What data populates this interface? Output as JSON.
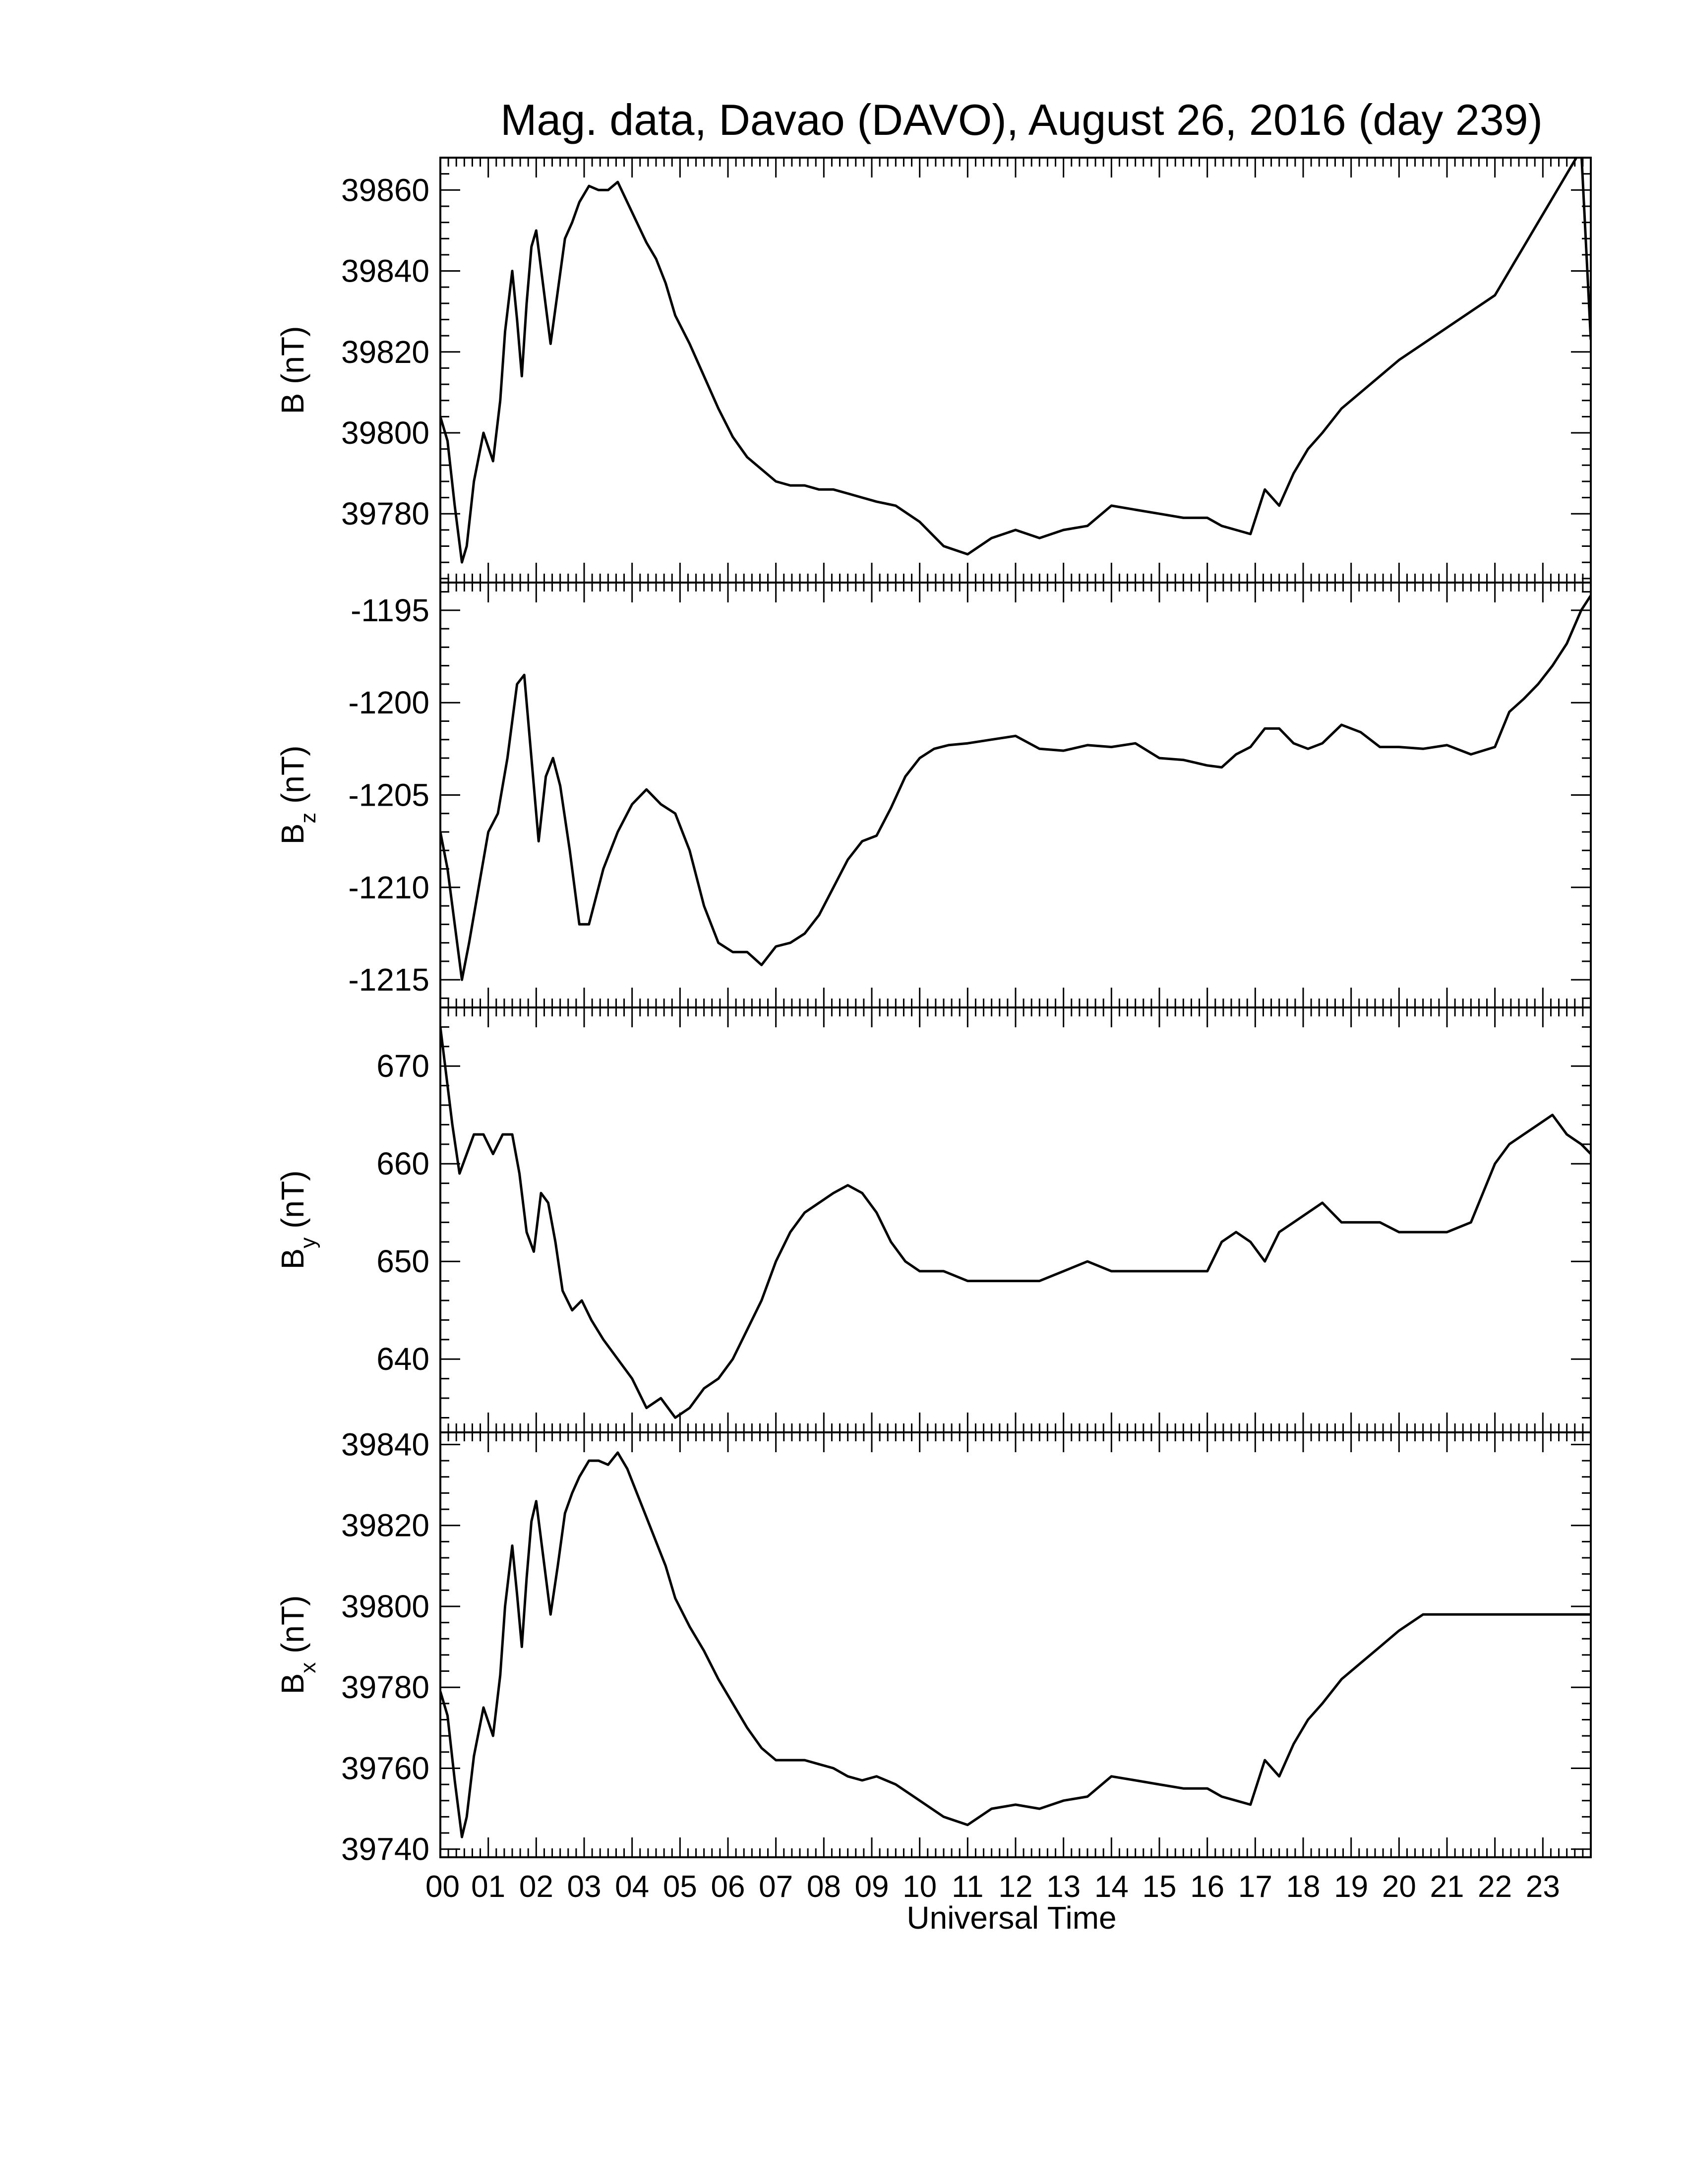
{
  "title": "Mag. data, Davao (DAVO), August 26, 2016 (day 239)",
  "x_label": "Universal Time",
  "x_tick_labels": [
    "00",
    "01",
    "02",
    "03",
    "04",
    "05",
    "06",
    "07",
    "08",
    "09",
    "10",
    "11",
    "12",
    "13",
    "14",
    "15",
    "16",
    "17",
    "18",
    "19",
    "20",
    "21",
    "22",
    "23"
  ],
  "colors": {
    "line": "#000000",
    "frame": "#000000",
    "background": "#ffffff"
  },
  "chart_data": [
    {
      "type": "line",
      "name": "B",
      "ylabel": "B (nT)",
      "ylabel_main": "B",
      "ylabel_sub": "",
      "ylabel_unit": " (nT)",
      "ylim": [
        39763,
        39868
      ],
      "yticks": [
        39780,
        39800,
        39820,
        39840,
        39860
      ],
      "xlim": [
        0,
        24
      ],
      "x": [
        0,
        0.15,
        0.3,
        0.45,
        0.55,
        0.7,
        0.9,
        1.1,
        1.25,
        1.35,
        1.5,
        1.6,
        1.7,
        1.8,
        1.9,
        2.0,
        2.15,
        2.3,
        2.45,
        2.6,
        2.75,
        2.9,
        3.1,
        3.3,
        3.5,
        3.7,
        3.9,
        4.1,
        4.3,
        4.5,
        4.7,
        4.9,
        5.2,
        5.5,
        5.8,
        6.1,
        6.4,
        6.7,
        7.0,
        7.3,
        7.6,
        7.9,
        8.2,
        8.5,
        8.8,
        9.1,
        9.5,
        10.0,
        10.5,
        11.0,
        11.5,
        12.0,
        12.5,
        13.0,
        13.5,
        14.0,
        14.5,
        15.0,
        15.5,
        15.8,
        16.0,
        16.3,
        16.6,
        16.9,
        17.2,
        17.5,
        17.8,
        18.1,
        18.4,
        18.8,
        19.2,
        19.6,
        20.0,
        20.5,
        21.0,
        21.5,
        22.0,
        22.2,
        22.4,
        22.6,
        22.8,
        23.0,
        23.2,
        23.4,
        23.6,
        23.8,
        24.0
      ],
      "y": [
        39804,
        39798,
        39782,
        39768,
        39772,
        39788,
        39800,
        39793,
        39808,
        39825,
        39840,
        39828,
        39814,
        39832,
        39846,
        39850,
        39836,
        39822,
        39835,
        39848,
        39852,
        39857,
        39861,
        39860,
        39860,
        39862,
        39857,
        39852,
        39847,
        39843,
        39837,
        39829,
        39822,
        39814,
        39806,
        39799,
        39794,
        39791,
        39788,
        39787,
        39787,
        39786,
        39786,
        39785,
        39784,
        39783,
        39782,
        39778,
        39772,
        39770,
        39774,
        39776,
        39774,
        39776,
        39777,
        39782,
        39781,
        39780,
        39779,
        39779,
        39779,
        39777,
        39776,
        39775,
        39786,
        39782,
        39790,
        39796,
        39800,
        39806,
        39810,
        39814,
        39818,
        39822,
        39826,
        39830,
        39834,
        39838,
        39842,
        39846,
        39850,
        39854,
        39858,
        39862,
        39866,
        39870,
        39823
      ],
      "grid": false,
      "legend": "none"
    },
    {
      "type": "line",
      "name": "Bz",
      "ylabel": "Bz (nT)",
      "ylabel_main": "B",
      "ylabel_sub": "z",
      "ylabel_unit": " (nT)",
      "ylim": [
        -1216.5,
        -1193.5
      ],
      "yticks": [
        -1215,
        -1210,
        -1205,
        -1200,
        -1195
      ],
      "xlim": [
        0,
        24
      ],
      "x": [
        0,
        0.15,
        0.3,
        0.45,
        0.6,
        0.8,
        1.0,
        1.2,
        1.4,
        1.6,
        1.75,
        1.9,
        2.05,
        2.2,
        2.35,
        2.5,
        2.7,
        2.9,
        3.1,
        3.4,
        3.7,
        4.0,
        4.3,
        4.6,
        4.9,
        5.2,
        5.5,
        5.8,
        6.1,
        6.4,
        6.7,
        7.0,
        7.3,
        7.6,
        7.9,
        8.2,
        8.5,
        8.8,
        9.1,
        9.4,
        9.7,
        10.0,
        10.3,
        10.6,
        11.0,
        11.5,
        12.0,
        12.5,
        13.0,
        13.5,
        14.0,
        14.5,
        15.0,
        15.5,
        16.0,
        16.3,
        16.6,
        16.9,
        17.2,
        17.5,
        17.8,
        18.1,
        18.4,
        18.8,
        19.2,
        19.6,
        20.0,
        20.5,
        21.0,
        21.5,
        22.0,
        22.3,
        22.6,
        22.9,
        23.2,
        23.5,
        23.8,
        24.0
      ],
      "y": [
        -1207,
        -1209,
        -1212,
        -1215,
        -1213,
        -1210,
        -1207,
        -1206,
        -1203,
        -1199,
        -1198.5,
        -1203,
        -1207.5,
        -1204,
        -1203,
        -1204.5,
        -1208,
        -1212,
        -1212,
        -1209,
        -1207,
        -1205.5,
        -1204.7,
        -1205.5,
        -1206,
        -1208,
        -1211,
        -1213,
        -1213.5,
        -1213.5,
        -1214.2,
        -1213.2,
        -1213,
        -1212.5,
        -1211.5,
        -1210,
        -1208.5,
        -1207.5,
        -1207.2,
        -1205.7,
        -1204,
        -1203,
        -1202.5,
        -1202.3,
        -1202.2,
        -1202,
        -1201.8,
        -1202.5,
        -1202.6,
        -1202.3,
        -1202.4,
        -1202.2,
        -1203,
        -1203.1,
        -1203.4,
        -1203.5,
        -1202.8,
        -1202.4,
        -1201.4,
        -1201.4,
        -1202.2,
        -1202.5,
        -1202.2,
        -1201.2,
        -1201.6,
        -1202.4,
        -1202.4,
        -1202.5,
        -1202.3,
        -1202.8,
        -1202.4,
        -1200.5,
        -1199.8,
        -1199,
        -1198,
        -1196.8,
        -1195,
        -1194.2
      ],
      "grid": false,
      "legend": "none"
    },
    {
      "type": "line",
      "name": "By",
      "ylabel": "By (nT)",
      "ylabel_main": "B",
      "ylabel_sub": "y",
      "ylabel_unit": " (nT)",
      "ylim": [
        632.5,
        676
      ],
      "yticks": [
        640,
        650,
        660,
        670
      ],
      "xlim": [
        0,
        24
      ],
      "x": [
        0,
        0.1,
        0.25,
        0.4,
        0.55,
        0.7,
        0.9,
        1.1,
        1.3,
        1.5,
        1.65,
        1.8,
        1.95,
        2.1,
        2.25,
        2.4,
        2.55,
        2.75,
        2.95,
        3.15,
        3.4,
        3.7,
        4.0,
        4.3,
        4.6,
        4.9,
        5.2,
        5.5,
        5.8,
        6.1,
        6.4,
        6.7,
        7.0,
        7.3,
        7.6,
        7.9,
        8.2,
        8.5,
        8.8,
        9.1,
        9.4,
        9.7,
        10.0,
        10.5,
        11.0,
        11.5,
        12.0,
        12.5,
        13.0,
        13.5,
        14.0,
        14.5,
        15.0,
        15.5,
        16.0,
        16.3,
        16.6,
        16.9,
        17.2,
        17.5,
        17.8,
        18.1,
        18.4,
        18.8,
        19.2,
        19.6,
        20.0,
        20.5,
        21.0,
        21.5,
        22.0,
        22.3,
        22.6,
        22.9,
        23.2,
        23.5,
        23.8,
        24.0
      ],
      "y": [
        674,
        670,
        664,
        659,
        661,
        663,
        663,
        661,
        663,
        663,
        659,
        653,
        651,
        657,
        656,
        652,
        647,
        645,
        646,
        644,
        642,
        640,
        638,
        635,
        636,
        634,
        635,
        637,
        638,
        640,
        643,
        646,
        650,
        653,
        655,
        656,
        657,
        657.8,
        657,
        655,
        652,
        650,
        649,
        649,
        648,
        648,
        648,
        648,
        649,
        650,
        649,
        649,
        649,
        649,
        649,
        652,
        653,
        652,
        650,
        653,
        654,
        655,
        656,
        654,
        654,
        654,
        653,
        653,
        653,
        654,
        660,
        662,
        663,
        664,
        665,
        663,
        662,
        661
      ],
      "grid": false,
      "legend": "none"
    },
    {
      "type": "line",
      "name": "Bx",
      "ylabel": "Bx (nT)",
      "ylabel_main": "B",
      "ylabel_sub": "x",
      "ylabel_unit": " (nT)",
      "ylim": [
        39738,
        39843
      ],
      "yticks": [
        39740,
        39760,
        39780,
        39800,
        39820,
        39840
      ],
      "xlim": [
        0,
        24
      ],
      "x": [
        0,
        0.15,
        0.3,
        0.45,
        0.55,
        0.7,
        0.9,
        1.1,
        1.25,
        1.35,
        1.5,
        1.6,
        1.7,
        1.8,
        1.9,
        2.0,
        2.15,
        2.3,
        2.45,
        2.6,
        2.75,
        2.9,
        3.1,
        3.3,
        3.5,
        3.7,
        3.9,
        4.1,
        4.3,
        4.5,
        4.7,
        4.9,
        5.2,
        5.5,
        5.8,
        6.1,
        6.4,
        6.7,
        7.0,
        7.3,
        7.6,
        7.9,
        8.2,
        8.5,
        8.8,
        9.1,
        9.5,
        10.0,
        10.5,
        11.0,
        11.5,
        12.0,
        12.5,
        13.0,
        13.5,
        14.0,
        14.5,
        15.0,
        15.5,
        15.8,
        16.0,
        16.3,
        16.6,
        16.9,
        17.2,
        17.5,
        17.8,
        18.1,
        18.4,
        18.8,
        19.2,
        19.6,
        20.0,
        20.5,
        21.0,
        21.5,
        22.0,
        22.2,
        22.4,
        22.6,
        22.8,
        23.0,
        23.2,
        23.4,
        23.6,
        23.8,
        24.0
      ],
      "y": [
        39779,
        39773,
        39757,
        39743,
        39748,
        39763,
        39775,
        39768,
        39783,
        39800,
        39815,
        39803,
        39790,
        39807,
        39821,
        39826,
        39812,
        39798,
        39810,
        39823,
        39828,
        39832,
        39836,
        39836,
        39835,
        39838,
        39834,
        39828,
        39822,
        39816,
        39810,
        39802,
        39795,
        39789,
        39782,
        39776,
        39770,
        39765,
        39762,
        39762,
        39762,
        39761,
        39760,
        39758,
        39757,
        39758,
        39756,
        39752,
        39748,
        39746,
        39750,
        39751,
        39750,
        39752,
        39753,
        39758,
        39757,
        39756,
        39755,
        39755,
        39755,
        39753,
        39752,
        39751,
        39762,
        39758,
        39766,
        39772,
        39776,
        39782,
        39786,
        39790,
        39794,
        39798,
        39798,
        39798,
        39798,
        39798,
        39798,
        39798,
        39798,
        39798,
        39798,
        39798,
        39798,
        39798,
        39798
      ],
      "grid": false,
      "legend": "none"
    }
  ]
}
